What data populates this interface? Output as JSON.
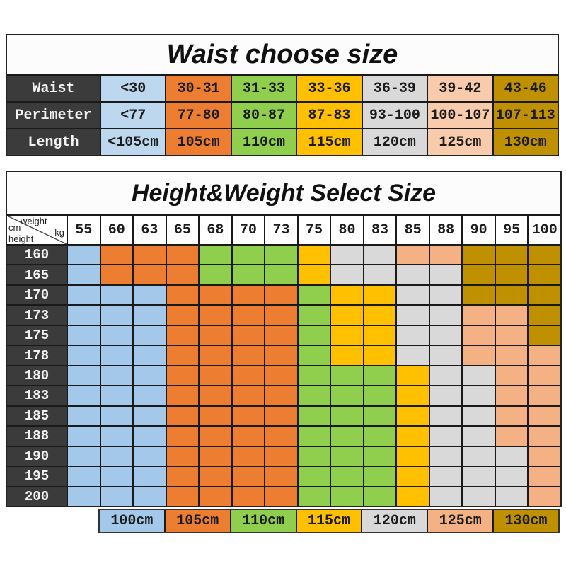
{
  "palette": {
    "blue_light": "#BDD7EE",
    "blue": "#A4C8E9",
    "orange": "#ED7D31",
    "green": "#90CE4E",
    "yellow": "#FFC000",
    "gray": "#D9D9D9",
    "peach_light": "#F8CBAD",
    "peach": "#F4B183",
    "gold": "#BF9000",
    "header_dark": "#3B3B3B",
    "grid_line": "#1A1A1A"
  },
  "waist_table": {
    "title": "Waist choose size",
    "rows": [
      {
        "label": "Waist",
        "cells": [
          {
            "text": "<30",
            "color": "blue_light"
          },
          {
            "text": "30-31",
            "color": "orange"
          },
          {
            "text": "31-33",
            "color": "green"
          },
          {
            "text": "33-36",
            "color": "yellow"
          },
          {
            "text": "36-39",
            "color": "gray"
          },
          {
            "text": "39-42",
            "color": "peach_light"
          },
          {
            "text": "43-46",
            "color": "gold"
          }
        ]
      },
      {
        "label": "Perimeter",
        "cells": [
          {
            "text": "<77",
            "color": "blue_light"
          },
          {
            "text": "77-80",
            "color": "orange"
          },
          {
            "text": "80-87",
            "color": "green"
          },
          {
            "text": "87-83",
            "color": "yellow"
          },
          {
            "text": "93-100",
            "color": "gray"
          },
          {
            "text": "100-107",
            "color": "peach_light"
          },
          {
            "text": "107-113",
            "color": "gold"
          }
        ]
      },
      {
        "label": "Length",
        "cells": [
          {
            "text": "<105cm",
            "color": "blue_light"
          },
          {
            "text": "105cm",
            "color": "orange"
          },
          {
            "text": "110cm",
            "color": "green"
          },
          {
            "text": "115cm",
            "color": "yellow"
          },
          {
            "text": "120cm",
            "color": "gray"
          },
          {
            "text": "125cm",
            "color": "peach_light"
          },
          {
            "text": "130cm",
            "color": "gold"
          }
        ]
      }
    ]
  },
  "height_weight_table": {
    "title": "Height&Weight Select Size",
    "corner": {
      "top_label": "weight",
      "top_unit": "kg",
      "side_unit": "cm",
      "side_label": "height"
    },
    "weight_columns": [
      "55",
      "60",
      "63",
      "65",
      "68",
      "70",
      "73",
      "75",
      "80",
      "83",
      "85",
      "88",
      "90",
      "95",
      "100"
    ],
    "height_rows": [
      "160",
      "165",
      "170",
      "173",
      "175",
      "178",
      "180",
      "183",
      "185",
      "188",
      "190",
      "195",
      "200"
    ],
    "cell_colors": [
      [
        "blue",
        "orange",
        "orange",
        "orange",
        "green",
        "green",
        "green",
        "yellow",
        "gray",
        "gray",
        "peach",
        "peach",
        "gold",
        "gold",
        "gold"
      ],
      [
        "blue",
        "orange",
        "orange",
        "orange",
        "green",
        "green",
        "green",
        "yellow",
        "gray",
        "gray",
        "gray",
        "gray",
        "gold",
        "gold",
        "gold"
      ],
      [
        "blue",
        "blue",
        "blue",
        "orange",
        "orange",
        "orange",
        "orange",
        "green",
        "yellow",
        "yellow",
        "gray",
        "gray",
        "gold",
        "gold",
        "gold"
      ],
      [
        "blue",
        "blue",
        "blue",
        "orange",
        "orange",
        "orange",
        "orange",
        "green",
        "yellow",
        "yellow",
        "gray",
        "gray",
        "peach",
        "peach",
        "gold"
      ],
      [
        "blue",
        "blue",
        "blue",
        "orange",
        "orange",
        "orange",
        "orange",
        "green",
        "yellow",
        "yellow",
        "gray",
        "gray",
        "peach",
        "peach",
        "gold"
      ],
      [
        "blue",
        "blue",
        "blue",
        "orange",
        "orange",
        "orange",
        "orange",
        "green",
        "yellow",
        "yellow",
        "gray",
        "gray",
        "peach",
        "peach",
        "peach"
      ],
      [
        "blue",
        "blue",
        "blue",
        "orange",
        "orange",
        "orange",
        "orange",
        "green",
        "green",
        "green",
        "yellow",
        "gray",
        "gray",
        "peach",
        "peach"
      ],
      [
        "blue",
        "blue",
        "blue",
        "orange",
        "orange",
        "orange",
        "orange",
        "green",
        "green",
        "green",
        "yellow",
        "gray",
        "gray",
        "peach",
        "peach"
      ],
      [
        "blue",
        "blue",
        "blue",
        "orange",
        "orange",
        "orange",
        "orange",
        "green",
        "green",
        "green",
        "yellow",
        "gray",
        "gray",
        "peach",
        "peach"
      ],
      [
        "blue",
        "blue",
        "blue",
        "orange",
        "orange",
        "orange",
        "orange",
        "green",
        "green",
        "green",
        "yellow",
        "gray",
        "gray",
        "peach",
        "peach"
      ],
      [
        "blue",
        "blue",
        "blue",
        "orange",
        "orange",
        "orange",
        "orange",
        "green",
        "green",
        "green",
        "yellow",
        "gray",
        "gray",
        "gray",
        "peach"
      ],
      [
        "blue",
        "blue",
        "blue",
        "orange",
        "orange",
        "orange",
        "orange",
        "green",
        "green",
        "green",
        "yellow",
        "gray",
        "gray",
        "gray",
        "peach"
      ],
      [
        "blue",
        "blue",
        "blue",
        "orange",
        "orange",
        "orange",
        "orange",
        "green",
        "green",
        "green",
        "yellow",
        "gray",
        "gray",
        "gray",
        "peach"
      ]
    ]
  },
  "legend": {
    "items": [
      {
        "label": "100cm",
        "color": "blue"
      },
      {
        "label": "105cm",
        "color": "orange"
      },
      {
        "label": "110cm",
        "color": "green"
      },
      {
        "label": "115cm",
        "color": "yellow"
      },
      {
        "label": "120cm",
        "color": "gray"
      },
      {
        "label": "125cm",
        "color": "peach"
      },
      {
        "label": "130cm",
        "color": "gold"
      }
    ]
  },
  "chart_data": [
    {
      "type": "table",
      "title": "Waist choose size",
      "row_headers": [
        "Waist",
        "Perimeter",
        "Length"
      ],
      "rows": [
        [
          "<30",
          "30-31",
          "31-33",
          "33-36",
          "36-39",
          "39-42",
          "43-46"
        ],
        [
          "<77",
          "77-80",
          "80-87",
          "87-83",
          "93-100",
          "100-107",
          "107-113"
        ],
        [
          "<105cm",
          "105cm",
          "110cm",
          "115cm",
          "120cm",
          "125cm",
          "130cm"
        ]
      ]
    },
    {
      "type": "heatmap",
      "title": "Height&Weight Select Size",
      "xlabel": "weight kg",
      "ylabel": "height cm",
      "x": [
        55,
        60,
        63,
        65,
        68,
        70,
        73,
        75,
        80,
        83,
        85,
        88,
        90,
        95,
        100
      ],
      "y": [
        160,
        165,
        170,
        173,
        175,
        178,
        180,
        183,
        185,
        188,
        190,
        195,
        200
      ],
      "legend": {
        "blue": "100cm",
        "orange": "105cm",
        "green": "110cm",
        "yellow": "115cm",
        "gray": "120cm",
        "peach": "125cm",
        "gold": "130cm"
      },
      "cells": [
        [
          "blue",
          "orange",
          "orange",
          "orange",
          "green",
          "green",
          "green",
          "yellow",
          "gray",
          "gray",
          "peach",
          "peach",
          "gold",
          "gold",
          "gold"
        ],
        [
          "blue",
          "orange",
          "orange",
          "orange",
          "green",
          "green",
          "green",
          "yellow",
          "gray",
          "gray",
          "gray",
          "gray",
          "gold",
          "gold",
          "gold"
        ],
        [
          "blue",
          "blue",
          "blue",
          "orange",
          "orange",
          "orange",
          "orange",
          "green",
          "yellow",
          "yellow",
          "gray",
          "gray",
          "gold",
          "gold",
          "gold"
        ],
        [
          "blue",
          "blue",
          "blue",
          "orange",
          "orange",
          "orange",
          "orange",
          "green",
          "yellow",
          "yellow",
          "gray",
          "gray",
          "peach",
          "peach",
          "gold"
        ],
        [
          "blue",
          "blue",
          "blue",
          "orange",
          "orange",
          "orange",
          "orange",
          "green",
          "yellow",
          "yellow",
          "gray",
          "gray",
          "peach",
          "peach",
          "gold"
        ],
        [
          "blue",
          "blue",
          "blue",
          "orange",
          "orange",
          "orange",
          "orange",
          "green",
          "yellow",
          "yellow",
          "gray",
          "gray",
          "peach",
          "peach",
          "peach"
        ],
        [
          "blue",
          "blue",
          "blue",
          "orange",
          "orange",
          "orange",
          "orange",
          "green",
          "green",
          "green",
          "yellow",
          "gray",
          "gray",
          "peach",
          "peach"
        ],
        [
          "blue",
          "blue",
          "blue",
          "orange",
          "orange",
          "orange",
          "orange",
          "green",
          "green",
          "green",
          "yellow",
          "gray",
          "gray",
          "peach",
          "peach"
        ],
        [
          "blue",
          "blue",
          "blue",
          "orange",
          "orange",
          "orange",
          "orange",
          "green",
          "green",
          "green",
          "yellow",
          "gray",
          "gray",
          "peach",
          "peach"
        ],
        [
          "blue",
          "blue",
          "blue",
          "orange",
          "orange",
          "orange",
          "orange",
          "green",
          "green",
          "green",
          "yellow",
          "gray",
          "gray",
          "peach",
          "peach"
        ],
        [
          "blue",
          "blue",
          "blue",
          "orange",
          "orange",
          "orange",
          "orange",
          "green",
          "green",
          "green",
          "yellow",
          "gray",
          "gray",
          "gray",
          "peach"
        ],
        [
          "blue",
          "blue",
          "blue",
          "orange",
          "orange",
          "orange",
          "orange",
          "green",
          "green",
          "green",
          "yellow",
          "gray",
          "gray",
          "gray",
          "peach"
        ],
        [
          "blue",
          "blue",
          "blue",
          "orange",
          "orange",
          "orange",
          "orange",
          "green",
          "green",
          "green",
          "yellow",
          "gray",
          "gray",
          "gray",
          "peach"
        ]
      ]
    }
  ]
}
